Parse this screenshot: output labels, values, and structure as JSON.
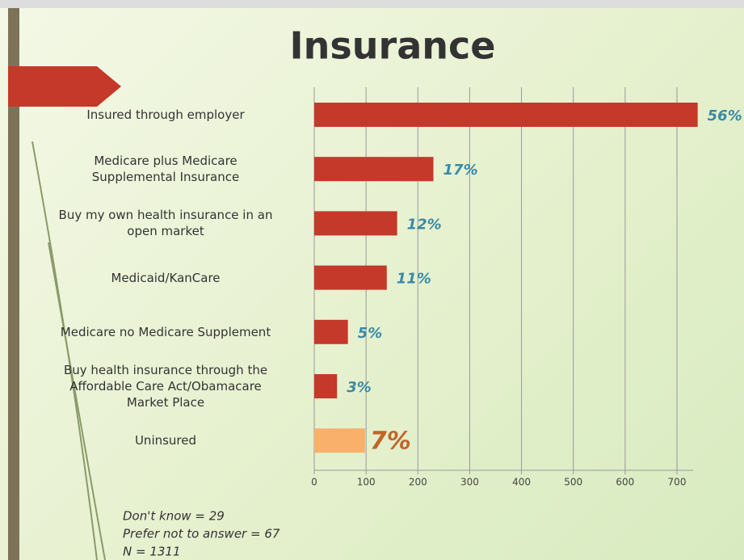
{
  "chart_data": {
    "type": "barh",
    "title": "Insurance",
    "categories": [
      "Insured through employer",
      "Medicare plus Medicare\nSupplemental Insurance",
      "Buy my own health insurance in an\nopen market",
      "Medicaid/KanCare",
      "Medicare no Medicare Supplement",
      "Buy health insurance through the\nAffordable Care Act/Obamacare\nMarket Place",
      "Uninsured"
    ],
    "values": [
      740,
      230,
      160,
      140,
      65,
      44,
      98
    ],
    "value_labels": [
      "56%",
      "17%",
      "12%",
      "11%",
      "5%",
      "3%",
      "7%"
    ],
    "colors": [
      "#c4392a",
      "#c4392a",
      "#c4392a",
      "#c4392a",
      "#c4392a",
      "#c4392a",
      "#f8b06a"
    ],
    "label_colors": [
      "#3a8aa6",
      "#3a8aa6",
      "#3a8aa6",
      "#3a8aa6",
      "#3a8aa6",
      "#3a8aa6",
      "#c2652c"
    ],
    "xlim": [
      0,
      700
    ],
    "xticks": [
      0,
      100,
      200,
      300,
      400,
      500,
      600,
      700
    ],
    "grid": true,
    "notes": [
      "Don't know  = 29",
      "Prefer not to answer = 67",
      "N = 1311"
    ]
  }
}
